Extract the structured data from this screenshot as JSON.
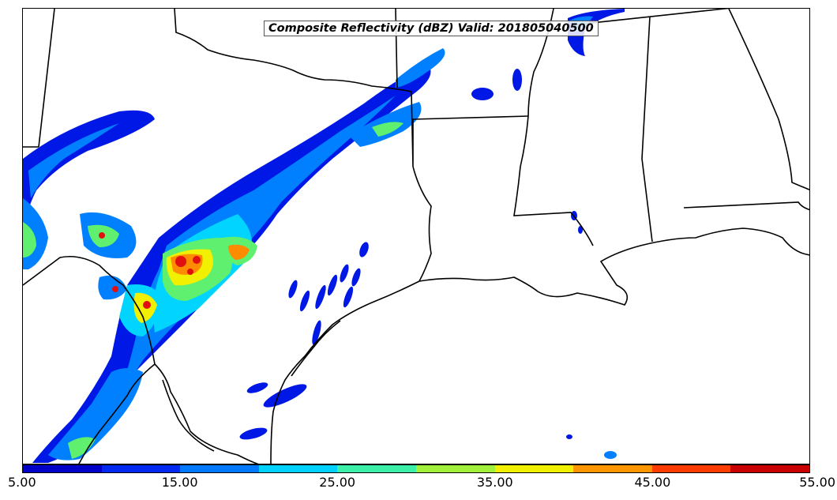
{
  "title": "Composite Reflectivity (dBZ) Valid: 201805040500",
  "colorbar": {
    "tick_labels": [
      "5.00",
      "15.00",
      "25.00",
      "35.00",
      "45.00",
      "55.00"
    ],
    "colors": [
      "#0000c8",
      "#0028f0",
      "#0078ff",
      "#00d2ff",
      "#3cf0aa",
      "#a0f03c",
      "#f0f000",
      "#ff9600",
      "#ff3c00",
      "#c80000"
    ]
  },
  "palette": {
    "low": "#0018e6",
    "light": "#0080ff",
    "cyan": "#00d4ff",
    "green": "#60f070",
    "yellow": "#f0f000",
    "orange": "#ff8c00",
    "red": "#e01010"
  }
}
